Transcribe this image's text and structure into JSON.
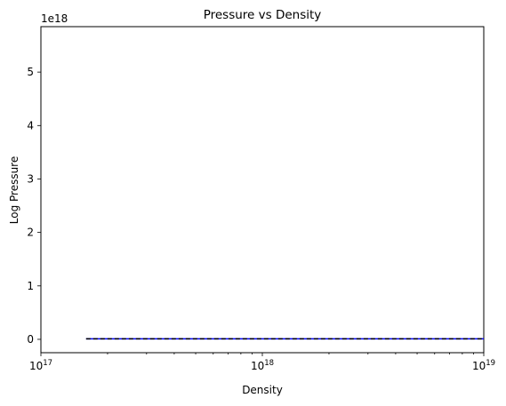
{
  "chart_data": {
    "type": "line",
    "title": "Pressure vs Density",
    "xlabel": "Density",
    "ylabel": "Log Pressure",
    "x_scale": "log",
    "xlim": [
      1e+17,
      1e+19
    ],
    "ylim": [
      -2.5e+17,
      5.85e+18
    ],
    "offset_text": "1e18",
    "x_ticks": [
      {
        "value": 1e+17,
        "base": "10",
        "exp": "17"
      },
      {
        "value": 1e+18,
        "base": "10",
        "exp": "18"
      },
      {
        "value": 1e+19,
        "base": "10",
        "exp": "19"
      }
    ],
    "y_ticks": [
      {
        "value": 0,
        "label": "0"
      },
      {
        "value": 1e+18,
        "label": "1"
      },
      {
        "value": 2e+18,
        "label": "2"
      },
      {
        "value": 3e+18,
        "label": "3"
      },
      {
        "value": 4e+18,
        "label": "4"
      },
      {
        "value": 5e+18,
        "label": "5"
      }
    ],
    "grid": false,
    "series": [
      {
        "style": "solid",
        "color": "#0000ff",
        "x": [
          1.6e+17,
          1e+19
        ],
        "y": [
          1e+16,
          1e+16
        ]
      },
      {
        "style": "dashed",
        "color": "#000000",
        "x": [
          1.6e+17,
          1e+19
        ],
        "y": [
          1e+16,
          1e+16
        ]
      }
    ]
  }
}
